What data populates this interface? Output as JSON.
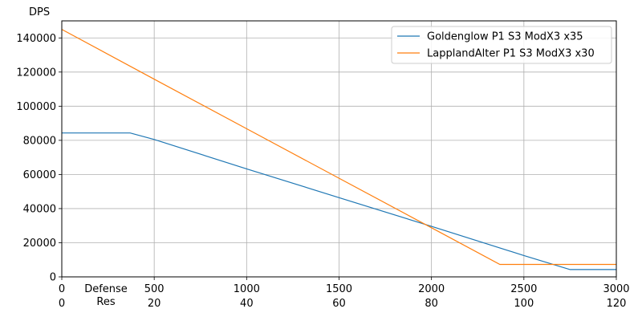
{
  "chart_data": {
    "type": "line",
    "ylabel": "DPS",
    "xlabel_lines": [
      "Defense",
      "Res"
    ],
    "xlim": [
      0,
      3000
    ],
    "ylim": [
      0,
      150000
    ],
    "grid": true,
    "legend_position": "top-right",
    "x_ticks": [
      {
        "defense": "0",
        "res": "0",
        "x": 0
      },
      {
        "defense": "500",
        "res": "20",
        "x": 500
      },
      {
        "defense": "1000",
        "res": "40",
        "x": 1000
      },
      {
        "defense": "1500",
        "res": "60",
        "x": 1500
      },
      {
        "defense": "2000",
        "res": "80",
        "x": 2000
      },
      {
        "defense": "2500",
        "res": "100",
        "x": 2500
      },
      {
        "defense": "3000",
        "res": "120",
        "x": 3000
      }
    ],
    "y_ticks": [
      {
        "label": "0",
        "y": 0
      },
      {
        "label": "20000",
        "y": 20000
      },
      {
        "label": "40000",
        "y": 40000
      },
      {
        "label": "60000",
        "y": 60000
      },
      {
        "label": "80000",
        "y": 80000
      },
      {
        "label": "100000",
        "y": 100000
      },
      {
        "label": "120000",
        "y": 120000
      },
      {
        "label": "140000",
        "y": 140000
      }
    ],
    "series": [
      {
        "name": "Goldenglow P1 S3 ModX3 x35",
        "color": "#1f77b4",
        "points": [
          [
            0,
            84300
          ],
          [
            370,
            84300
          ],
          [
            500,
            80500
          ],
          [
            1000,
            63300
          ],
          [
            1500,
            46400
          ],
          [
            2000,
            29600
          ],
          [
            2500,
            12500
          ],
          [
            2750,
            4300
          ],
          [
            3000,
            4300
          ]
        ]
      },
      {
        "name": "LapplandAlter P1 S3 ModX3 x30",
        "color": "#ff7f0e",
        "points": [
          [
            0,
            145000
          ],
          [
            500,
            115800
          ],
          [
            1000,
            86800
          ],
          [
            1500,
            57800
          ],
          [
            2000,
            28800
          ],
          [
            2370,
            7300
          ],
          [
            3000,
            7300
          ]
        ]
      }
    ]
  }
}
